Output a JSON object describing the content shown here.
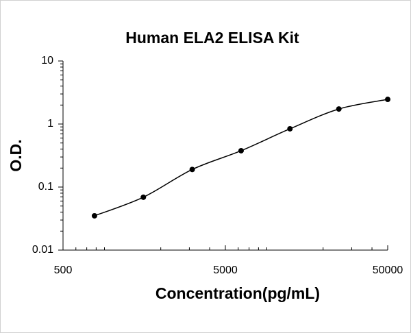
{
  "chart_data": {
    "type": "scatter",
    "title": "Human ELA2 ELISA Kit",
    "x_label": "Concentration(pg/mL)",
    "y_label": "O.D.",
    "x": [
      781.25,
      1562.5,
      3125,
      6250,
      12500,
      25000,
      50000
    ],
    "series": [
      {
        "color": "#000000",
        "values": [
          0.035,
          0.069,
          0.19,
          0.377,
          0.84,
          1.73,
          2.46
        ]
      }
    ],
    "xlim": [
      500,
      50000
    ],
    "ylim": [
      0.01,
      10
    ],
    "xticks": [
      500,
      5000,
      50000
    ],
    "yticks": [
      0.01,
      0.1,
      1,
      10
    ],
    "xscale": "log",
    "yscale": "log",
    "grid": false
  }
}
